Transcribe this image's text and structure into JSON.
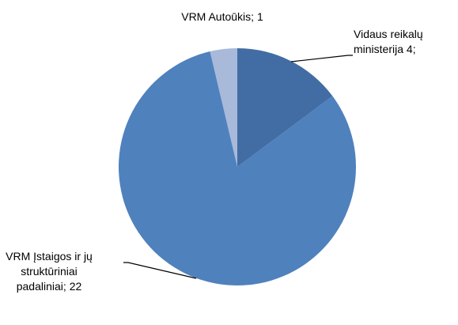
{
  "chart_data": {
    "type": "pie",
    "categories": [
      "Vidaus reikalų ministerija",
      "VRM Įstaigos ir jų struktūriniai padaliniai;",
      "VRM Autoūkis;"
    ],
    "values": [
      4,
      22,
      1
    ],
    "value_labels": [
      "4;",
      "22",
      "1"
    ],
    "colors": [
      "#426da4",
      "#4f81bd",
      "#a8b9da"
    ]
  }
}
